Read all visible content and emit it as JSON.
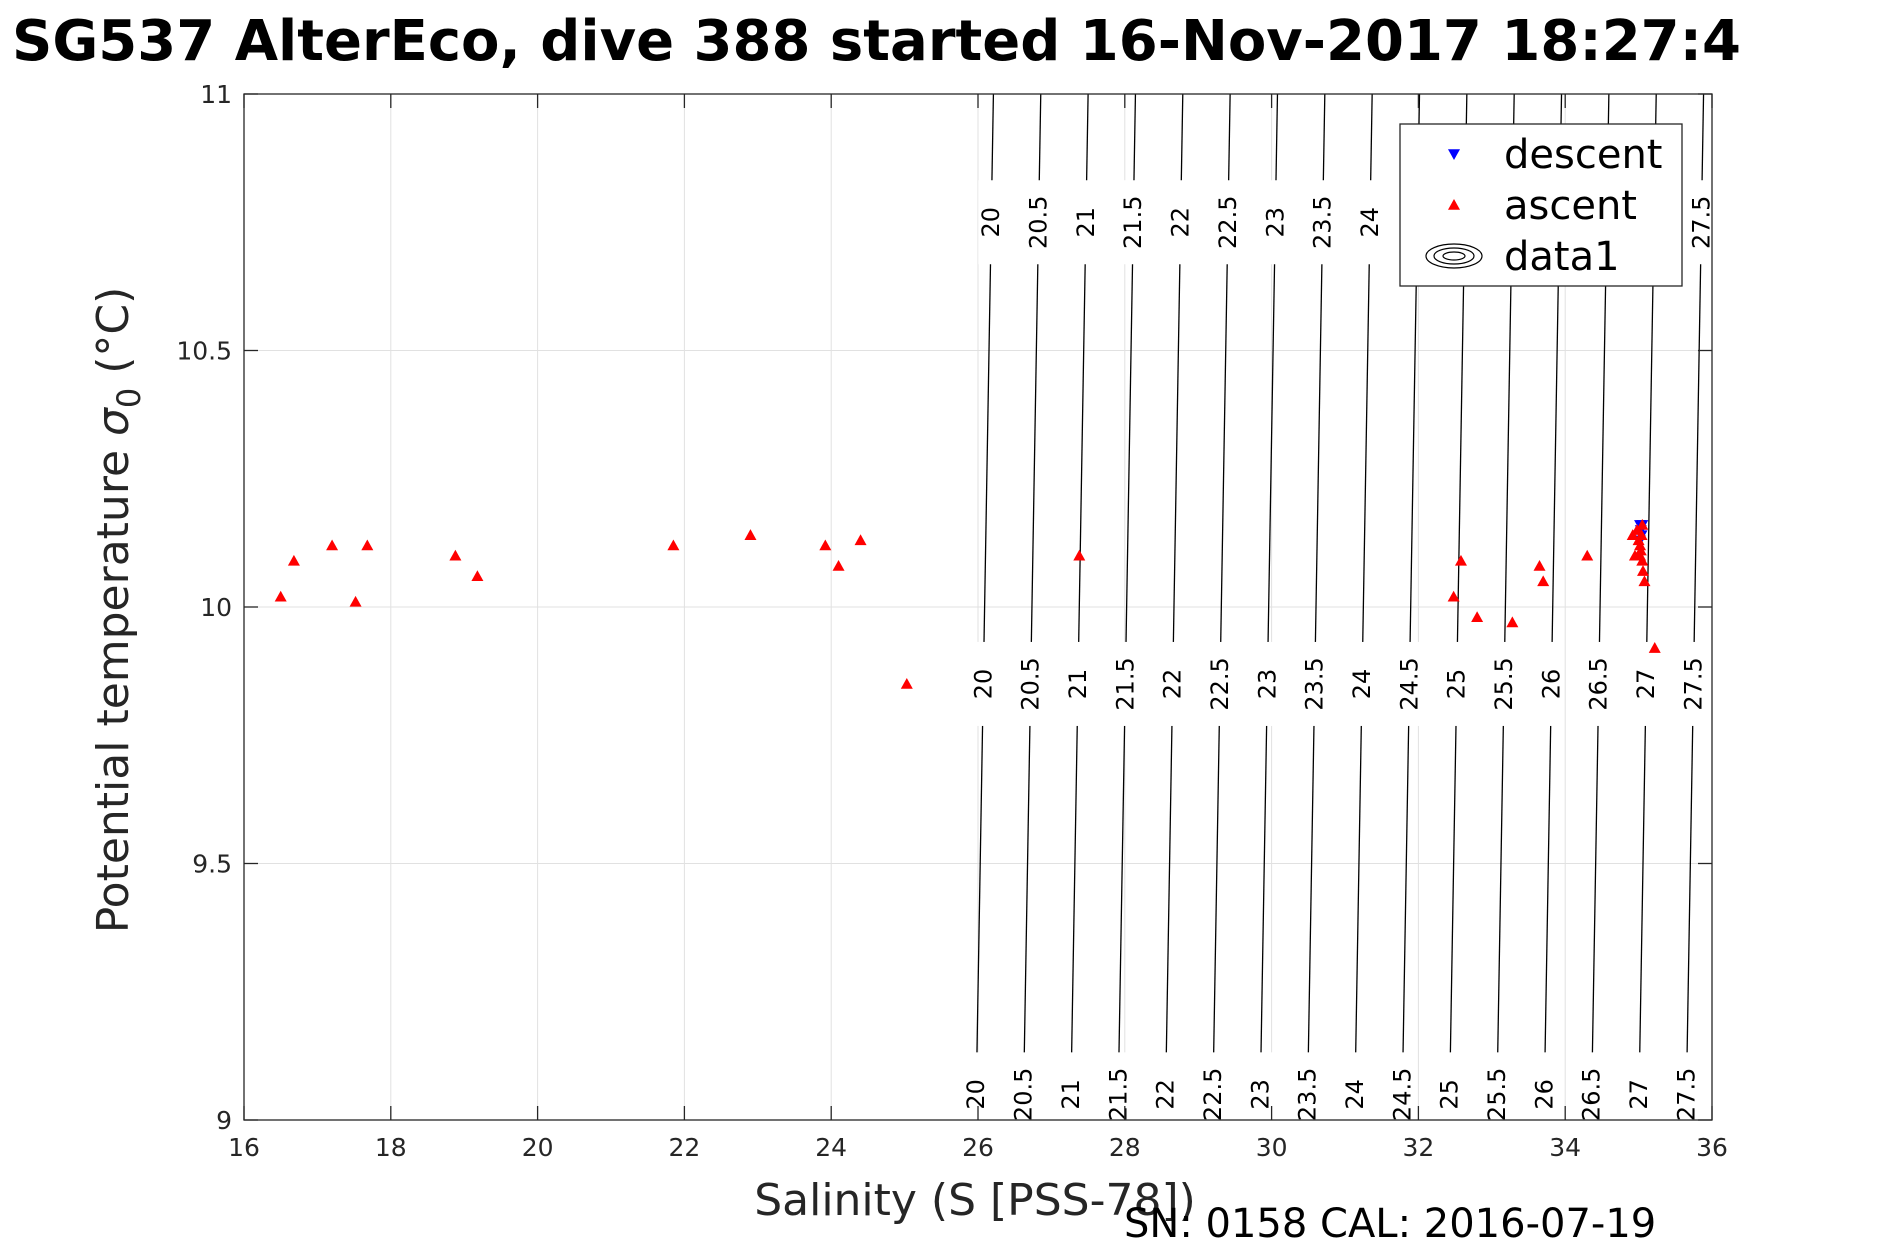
{
  "chart_data": {
    "type": "scatter",
    "title": "SG537 AlterEco, dive 388 started 16-Nov-2017 18:27:4",
    "xlabel": "Salinity (S [PSS-78])",
    "ylabel_main": "Potential temperature ",
    "ylabel_sigma": "σ",
    "ylabel_sub": "0",
    "ylabel_unit": " (°C)",
    "xlim": [
      16,
      36
    ],
    "ylim": [
      9,
      11
    ],
    "xticks": [
      16,
      18,
      20,
      22,
      24,
      26,
      28,
      30,
      32,
      34,
      36
    ],
    "yticks": [
      9,
      9.5,
      10,
      10.5,
      11
    ],
    "xtick_labels": [
      "16",
      "18",
      "20",
      "22",
      "24",
      "26",
      "28",
      "30",
      "32",
      "34",
      "36"
    ],
    "ytick_labels": [
      "9",
      "9.5",
      "10",
      "10.5",
      "11"
    ],
    "grid": true,
    "legend_position": "top-right",
    "legend": [
      "descent",
      "ascent",
      "data1"
    ],
    "series": [
      {
        "name": "descent",
        "marker": "triangle-down",
        "color": "#0000ff",
        "points": [
          [
            35.02,
            10.16
          ],
          [
            35.03,
            10.15
          ],
          [
            35.04,
            10.14
          ],
          [
            35.02,
            10.13
          ],
          [
            35.05,
            10.16
          ]
        ]
      },
      {
        "name": "ascent",
        "marker": "triangle-up",
        "color": "#ff0000",
        "points": [
          [
            16.5,
            10.02
          ],
          [
            16.68,
            10.09
          ],
          [
            17.2,
            10.12
          ],
          [
            17.52,
            10.01
          ],
          [
            17.68,
            10.12
          ],
          [
            18.88,
            10.1
          ],
          [
            19.18,
            10.06
          ],
          [
            21.85,
            10.12
          ],
          [
            22.9,
            10.14
          ],
          [
            23.92,
            10.12
          ],
          [
            24.1,
            10.08
          ],
          [
            24.4,
            10.13
          ],
          [
            25.03,
            9.85
          ],
          [
            27.38,
            10.1
          ],
          [
            32.48,
            10.02
          ],
          [
            32.58,
            10.09
          ],
          [
            32.8,
            9.98
          ],
          [
            33.28,
            9.97
          ],
          [
            33.65,
            10.08
          ],
          [
            33.7,
            10.05
          ],
          [
            34.3,
            10.1
          ],
          [
            34.92,
            10.14
          ],
          [
            34.95,
            10.1
          ],
          [
            34.98,
            10.15
          ],
          [
            35.0,
            10.13
          ],
          [
            35.02,
            10.12
          ],
          [
            35.03,
            10.11
          ],
          [
            35.05,
            10.09
          ],
          [
            35.06,
            10.07
          ],
          [
            35.08,
            10.05
          ],
          [
            35.05,
            10.16
          ],
          [
            35.04,
            10.14
          ],
          [
            35.02,
            10.1
          ],
          [
            35.22,
            9.92
          ]
        ]
      }
    ],
    "contours": {
      "name": "data1",
      "color": "#000000",
      "levels": [
        20,
        20.5,
        21,
        21.5,
        22,
        22.5,
        23,
        23.5,
        24,
        24.5,
        25,
        25.5,
        26,
        26.5,
        27,
        27.5
      ],
      "level_labels": [
        "20",
        "20.5",
        "21",
        "21.5",
        "22",
        "22.5",
        "23",
        "23.5",
        "24",
        "24.5",
        "25",
        "25.5",
        "26",
        "26.5",
        "27",
        "27.5"
      ],
      "labeled_rows": [
        9.05,
        9.85,
        10.75
      ]
    },
    "footer": "SN: 0158  CAL: 2016-07-19"
  }
}
